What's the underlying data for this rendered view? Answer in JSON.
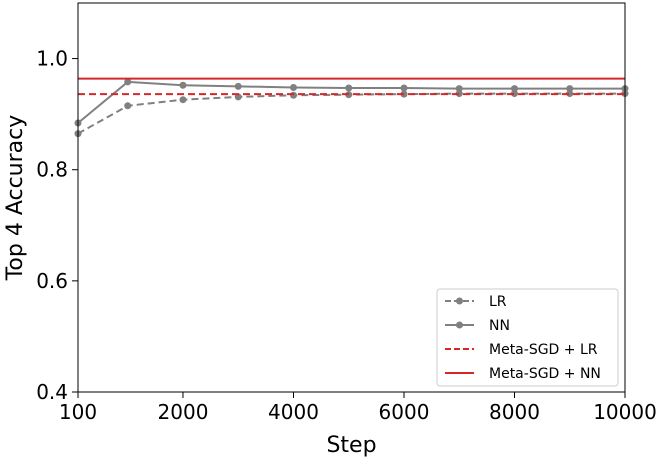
{
  "chart_data": {
    "type": "line",
    "xlabel": "Step",
    "ylabel": "Top 4 Accuracy",
    "xlim": [
      100,
      10000
    ],
    "ylim": [
      0.4,
      1.1
    ],
    "xticks": [
      100,
      2000,
      4000,
      6000,
      8000,
      10000
    ],
    "xtick_labels": [
      "100",
      "2000",
      "4000",
      "6000",
      "8000",
      "10000"
    ],
    "yticks": [
      0.4,
      0.6,
      0.8,
      1.0
    ],
    "ytick_labels": [
      "0.4",
      "0.6",
      "0.8",
      "1.0"
    ],
    "grid": false,
    "legend_position": "lower-right",
    "series": [
      {
        "name": "LR",
        "color": "#808080",
        "style": "dashed",
        "marker": "circle",
        "x": [
          100,
          1000,
          2000,
          3000,
          4000,
          5000,
          6000,
          7000,
          8000,
          9000,
          10000
        ],
        "y": [
          0.865,
          0.915,
          0.926,
          0.931,
          0.934,
          0.935,
          0.936,
          0.937,
          0.937,
          0.937,
          0.937
        ]
      },
      {
        "name": "NN",
        "color": "#808080",
        "style": "solid",
        "marker": "circle",
        "x": [
          100,
          1000,
          2000,
          3000,
          4000,
          5000,
          6000,
          7000,
          8000,
          9000,
          10000
        ],
        "y": [
          0.884,
          0.958,
          0.952,
          0.95,
          0.948,
          0.947,
          0.947,
          0.946,
          0.946,
          0.946,
          0.946
        ]
      },
      {
        "name": "Meta-SGD + LR",
        "color": "#d62728",
        "style": "dashed",
        "marker": "none",
        "constant": 0.936
      },
      {
        "name": "Meta-SGD + NN",
        "color": "#d62728",
        "style": "solid",
        "marker": "none",
        "constant": 0.964
      }
    ]
  }
}
